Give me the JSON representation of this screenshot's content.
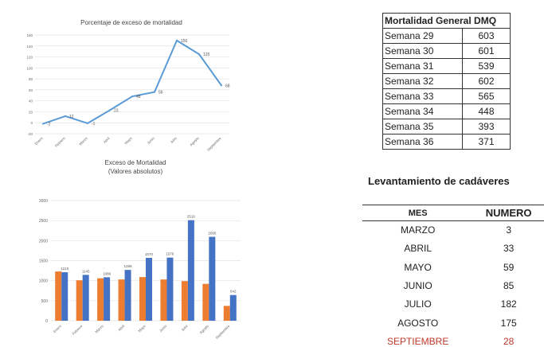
{
  "chart_data": [
    {
      "type": "line",
      "title": "Porcentaje de exceso de mortalidad",
      "categories": [
        "Enero",
        "Febrero",
        "Marzo",
        "Abril",
        "Mayo",
        "Junio",
        "Julio",
        "Agosto",
        "Septiembre"
      ],
      "values": [
        -2,
        12,
        -1,
        23,
        48,
        56,
        150,
        125,
        68
      ],
      "value_labels": [
        "-2",
        "12",
        "-1",
        "23",
        "48",
        "56",
        "150",
        "125",
        "68"
      ],
      "ylim": [
        -20,
        160
      ],
      "yticks": [
        -20,
        0,
        20,
        40,
        60,
        80,
        100,
        120,
        140,
        160
      ],
      "color": "#5b9bd5",
      "grid": true
    },
    {
      "type": "bar",
      "title": "Exceso de Mortalidad",
      "subtitle": "(Valores absolutos)",
      "categories": [
        "Enero",
        "Febrero",
        "Marzo",
        "Abril",
        "Mayo",
        "Junio",
        "Julio",
        "Agosto",
        "Septiembre"
      ],
      "series": [
        {
          "color": "#ed7d31",
          "values": [
            1230,
            1010,
            1060,
            1030,
            1090,
            1030,
            990,
            920,
            370
          ]
        },
        {
          "color": "#4472c4",
          "values": [
            1210,
            1145,
            1086,
            1269,
            1570,
            1576,
            2510,
            2095,
            642
          ],
          "labels": [
            "1210",
            "1145",
            "1086",
            "1269",
            "1570",
            "1576",
            "2510",
            "2095",
            "642"
          ]
        }
      ],
      "ylim": [
        0,
        3000
      ],
      "yticks": [
        0,
        500,
        1000,
        1500,
        2000,
        2500,
        3000
      ],
      "grid": true
    }
  ],
  "weekly_table": {
    "header": "Mortalidad General DMQ",
    "rows": [
      {
        "week": "Semana 29",
        "value": "603"
      },
      {
        "week": "Semana 30",
        "value": "601"
      },
      {
        "week": "Semana 31",
        "value": "539"
      },
      {
        "week": "Semana 32",
        "value": "602"
      },
      {
        "week": "Semana 33",
        "value": "565"
      },
      {
        "week": "Semana 34",
        "value": "448"
      },
      {
        "week": "Semana 35",
        "value": "393"
      },
      {
        "week": "Semana 36",
        "value": "371"
      }
    ]
  },
  "levantamiento": {
    "title": "Levantamiento de cadáveres",
    "col_mes": "MES",
    "col_numero": "NUMERO",
    "highlight_color": "#c0392b",
    "rows": [
      {
        "mes": "MARZO",
        "numero": "3"
      },
      {
        "mes": "ABRIL",
        "numero": "33"
      },
      {
        "mes": "MAYO",
        "numero": "59"
      },
      {
        "mes": "JUNIO",
        "numero": "85"
      },
      {
        "mes": "JULIO",
        "numero": "182"
      },
      {
        "mes": "AGOSTO",
        "numero": "175"
      },
      {
        "mes": "SEPTIEMBRE",
        "numero": "28"
      }
    ]
  }
}
